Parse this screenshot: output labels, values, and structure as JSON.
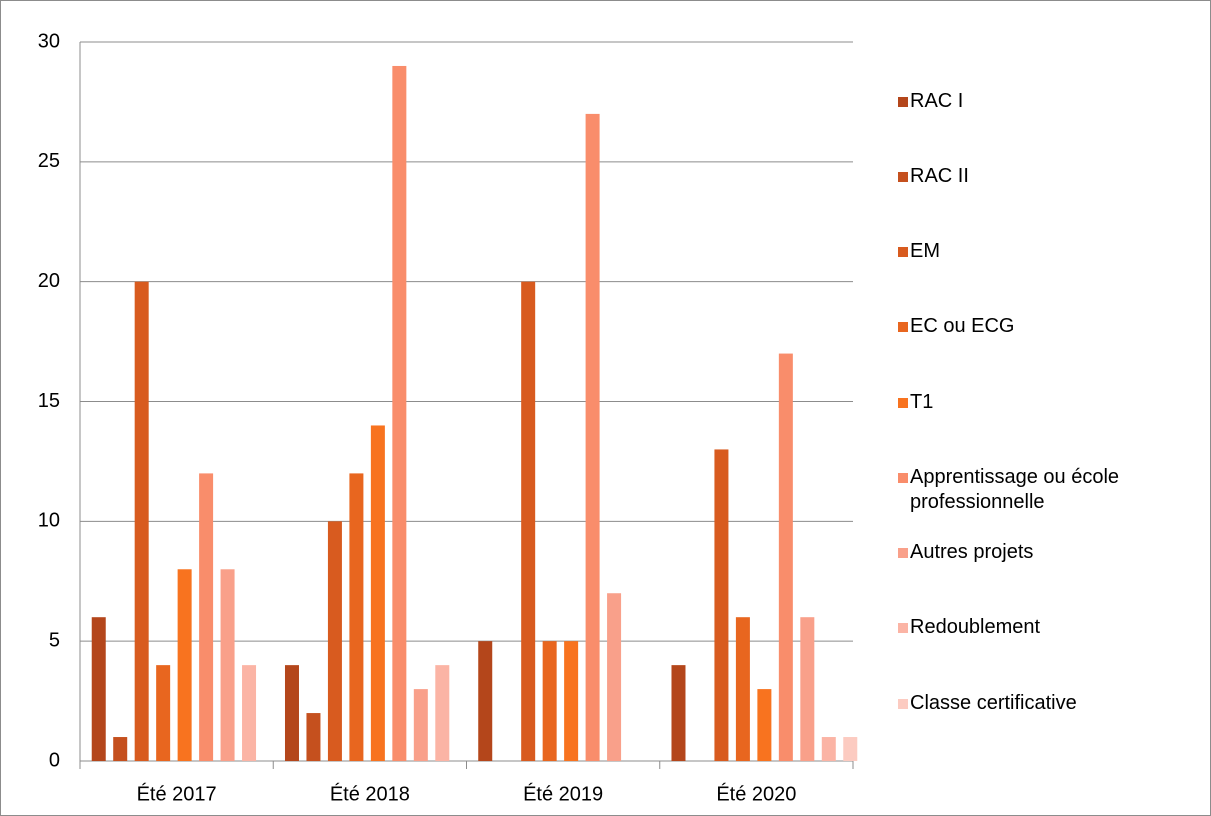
{
  "chart_data": {
    "type": "bar",
    "categories": [
      "Été 2017",
      "Été 2018",
      "Été 2019",
      "Été 2020"
    ],
    "series": [
      {
        "name": "RAC I",
        "color": "#b4461b",
        "values": [
          6,
          4,
          5,
          4
        ]
      },
      {
        "name": "RAC II",
        "color": "#c5501e",
        "values": [
          1,
          2,
          0,
          0
        ]
      },
      {
        "name": "EM",
        "color": "#d85b1f",
        "values": [
          20,
          10,
          20,
          13
        ]
      },
      {
        "name": "EC ou ECG",
        "color": "#e8661f",
        "values": [
          4,
          12,
          5,
          6
        ]
      },
      {
        "name": "T1",
        "color": "#f8731f",
        "values": [
          8,
          14,
          5,
          3
        ]
      },
      {
        "name": "Apprentissage ou école professionnelle",
        "color": "#f98d6b",
        "values": [
          12,
          29,
          27,
          17
        ]
      },
      {
        "name": "Autres projets",
        "color": "#f9a08a",
        "values": [
          8,
          3,
          7,
          6
        ]
      },
      {
        "name": "Redoublement",
        "color": "#fbb4a5",
        "values": [
          4,
          4,
          0,
          1
        ]
      },
      {
        "name": "Classe certificative",
        "color": "#fccbc1",
        "values": [
          0,
          0,
          0,
          1
        ]
      }
    ],
    "ylim": [
      0,
      30
    ],
    "yticks": [
      0,
      5,
      10,
      15,
      20,
      25,
      30
    ],
    "grid": true,
    "legend": "right"
  }
}
